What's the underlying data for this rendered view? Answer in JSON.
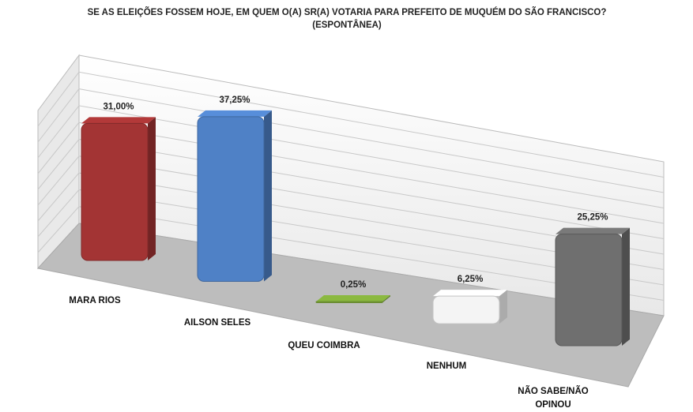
{
  "chart_data": {
    "type": "bar3d",
    "title": "SE AS ELEIÇÕES FOSSEM HOJE, EM QUEM O(A) SR(A) VOTARIA PARA PREFEITO DE MUQUÉM DO SÃO FRANCISCO? (ESPONTÂNEA)",
    "categories": [
      "MARA RIOS",
      "AILSON SELES",
      "QUEU COIMBRA",
      "NENHUM",
      "NÃO SABE/NÃO OPINOU"
    ],
    "values": [
      31.0,
      37.25,
      0.25,
      6.25,
      25.25
    ],
    "value_labels": [
      "31,00%",
      "37,25%",
      "0,25%",
      "6,25%",
      "25,25%"
    ],
    "colors": [
      "#a33434",
      "#4f81c6",
      "#7ea83a",
      "#f4f4f4",
      "#6f6f6f"
    ]
  }
}
